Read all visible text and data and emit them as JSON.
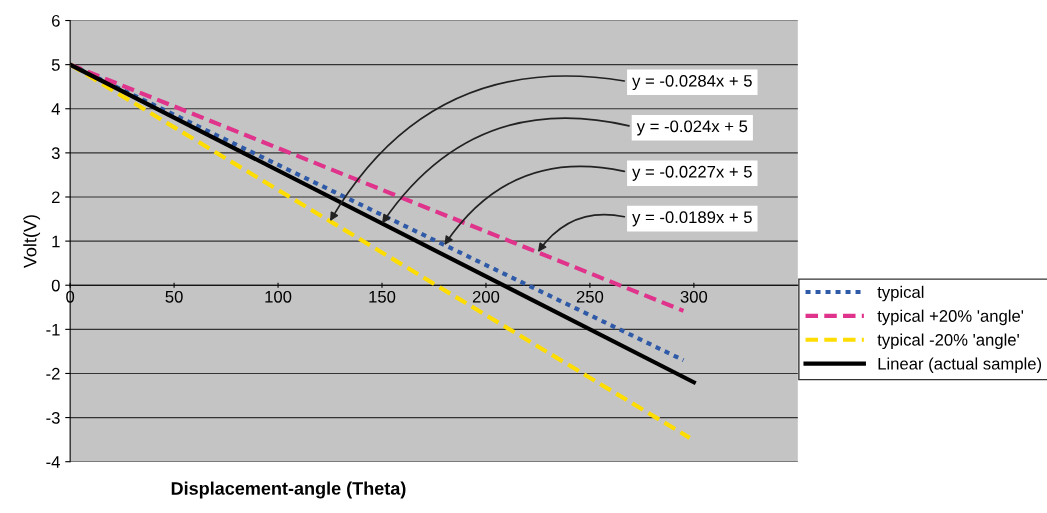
{
  "chart_data": {
    "type": "line",
    "xlabel": "Displacement-angle (Theta)",
    "ylabel": "Volt(V)",
    "xlim": [
      0,
      350
    ],
    "xticks": [
      0,
      50,
      100,
      150,
      200,
      250,
      300
    ],
    "ylim": [
      -4,
      6
    ],
    "yticks": [
      -4,
      -3,
      -2,
      -1,
      0,
      1,
      2,
      3,
      4,
      5,
      6
    ],
    "grid": "y",
    "legend": "right",
    "marker": "none",
    "series": [
      {
        "name": "typical",
        "color": "#2e5aa8",
        "line_style": "dotted",
        "x": [
          0,
          295
        ],
        "values": [
          5,
          -1.7
        ]
      },
      {
        "name": "typical +20% 'angle'",
        "color": "#e0338c",
        "line_style": "dashed",
        "x": [
          0,
          295
        ],
        "values": [
          5,
          -0.58
        ]
      },
      {
        "name": "typical -20% 'angle'",
        "color": "#ffdd00",
        "line_style": "dashed",
        "x": [
          0,
          298
        ],
        "values": [
          5,
          -3.46
        ]
      },
      {
        "name": "Linear (actual sample)",
        "color": "#000000",
        "line_style": "solid",
        "x": [
          0,
          300
        ],
        "values": [
          5,
          -2.2
        ]
      }
    ],
    "annotations": [
      {
        "text": "y = -0.0284x + 5",
        "x": 125,
        "y": 1.45
      },
      {
        "text": "y = -0.024x + 5",
        "x": 150,
        "y": 1.4
      },
      {
        "text": "y = -0.0227x + 5",
        "x": 180,
        "y": 0.91
      },
      {
        "text": "y = -0.0189x + 5",
        "x": 225,
        "y": 0.75
      }
    ]
  }
}
